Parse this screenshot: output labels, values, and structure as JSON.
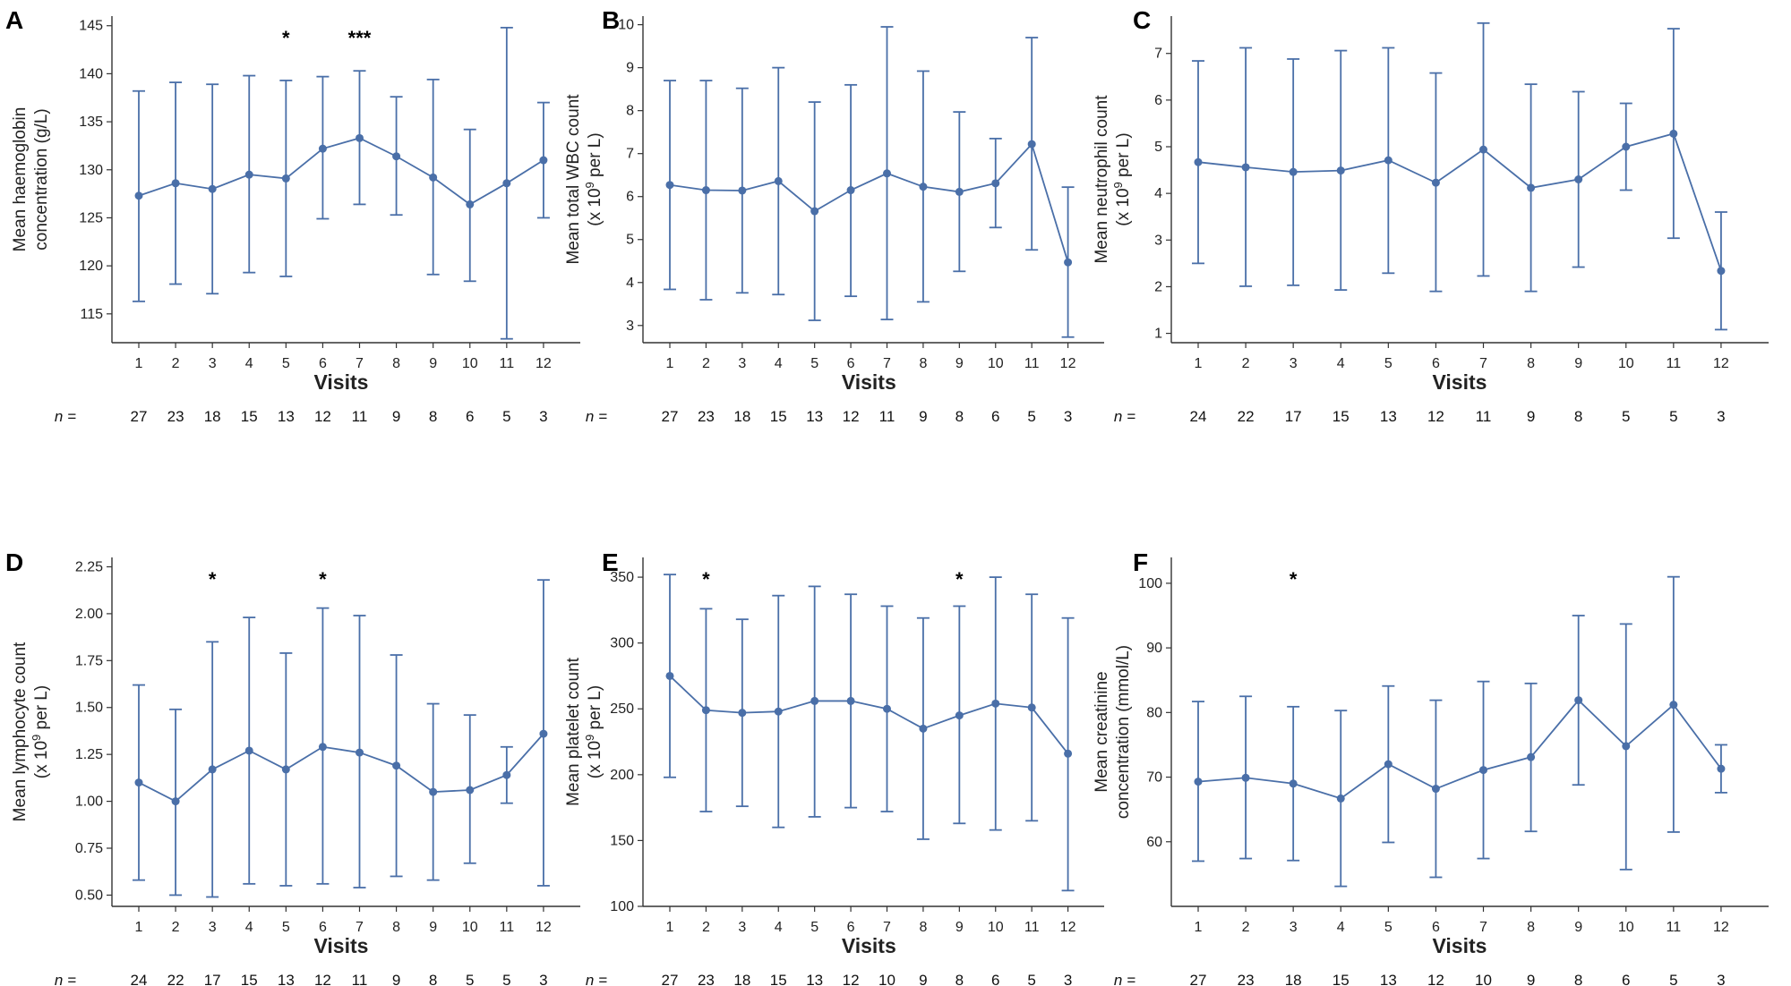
{
  "figure": {
    "x_label": "Visits",
    "n_label": "n =",
    "colors": {
      "series": "#4a6fa8",
      "axis": "#333333",
      "text": "#222222"
    }
  },
  "chart_data": [
    {
      "panel": "A",
      "type": "line",
      "ylabel_lines": [
        "Mean haemoglobin",
        "concentration (g/L)"
      ],
      "ylim": [
        112,
        146
      ],
      "yticks": [
        115,
        120,
        125,
        130,
        135,
        140,
        145
      ],
      "x": [
        1,
        2,
        3,
        4,
        5,
        6,
        7,
        8,
        9,
        10,
        11,
        12
      ],
      "means": [
        127.3,
        128.6,
        128.0,
        129.5,
        129.1,
        132.2,
        133.3,
        131.4,
        129.2,
        126.4,
        128.6,
        131.0
      ],
      "upper": [
        138.2,
        139.1,
        138.9,
        139.8,
        139.3,
        139.7,
        140.3,
        137.6,
        139.4,
        134.2,
        144.8,
        137.0
      ],
      "lower": [
        116.3,
        118.1,
        117.1,
        119.3,
        118.9,
        124.9,
        126.4,
        125.3,
        119.1,
        118.4,
        112.4,
        125.0
      ],
      "n": [
        "27",
        "23",
        "18",
        "15",
        "13",
        "12",
        "11",
        "9",
        "8",
        "6",
        "5",
        "3"
      ],
      "annotations": [
        {
          "x": 5,
          "text": "*"
        },
        {
          "x": 7,
          "text": "***"
        }
      ]
    },
    {
      "panel": "B",
      "type": "line",
      "ylabel_lines": [
        "Mean total WBC count",
        "(x 10^9 per L)"
      ],
      "ylim": [
        2.6,
        10.2
      ],
      "yticks": [
        3,
        4,
        5,
        6,
        7,
        8,
        9,
        10
      ],
      "x": [
        1,
        2,
        3,
        4,
        5,
        6,
        7,
        8,
        9,
        10,
        11,
        12
      ],
      "means": [
        6.27,
        6.15,
        6.14,
        6.36,
        5.66,
        6.15,
        6.54,
        6.23,
        6.11,
        6.31,
        7.22,
        4.47
      ],
      "upper": [
        8.7,
        8.7,
        8.52,
        9.0,
        8.2,
        8.6,
        9.95,
        8.92,
        7.97,
        7.35,
        9.7,
        6.22
      ],
      "lower": [
        3.84,
        3.6,
        3.76,
        3.72,
        3.12,
        3.68,
        3.14,
        3.55,
        4.26,
        5.28,
        4.76,
        2.73
      ],
      "n": [
        "27",
        "23",
        "18",
        "15",
        "13",
        "12",
        "11",
        "9",
        "8",
        "6",
        "5",
        "3"
      ],
      "annotations": []
    },
    {
      "panel": "C",
      "type": "line",
      "ylabel_lines": [
        "Mean neutrophil count",
        "(x 10^9 per L)"
      ],
      "ylim": [
        0.8,
        7.8
      ],
      "yticks": [
        1,
        2,
        3,
        4,
        5,
        6,
        7
      ],
      "x": [
        1,
        2,
        3,
        4,
        5,
        6,
        7,
        8,
        9,
        10,
        11,
        12
      ],
      "means": [
        4.67,
        4.56,
        4.46,
        4.49,
        4.71,
        4.23,
        4.94,
        4.12,
        4.3,
        5.0,
        5.28,
        2.34
      ],
      "upper": [
        6.84,
        7.12,
        6.88,
        7.06,
        7.12,
        6.58,
        7.65,
        6.34,
        6.18,
        5.93,
        7.53,
        3.6
      ],
      "lower": [
        2.5,
        2.01,
        2.03,
        1.93,
        2.29,
        1.9,
        2.23,
        1.9,
        2.42,
        4.07,
        3.04,
        1.08
      ],
      "n": [
        "24",
        "22",
        "17",
        "15",
        "13",
        "12",
        "11",
        "9",
        "8",
        "5",
        "5",
        "3"
      ],
      "annotations": []
    },
    {
      "panel": "D",
      "type": "line",
      "ylabel_lines": [
        "Mean lymphocyte count",
        "(x 10^9 per L)"
      ],
      "ylim": [
        0.44,
        2.3
      ],
      "yticks": [
        0.5,
        0.75,
        1.0,
        1.25,
        1.5,
        1.75,
        2.0,
        2.25
      ],
      "ytick_labels": [
        "0.50",
        "0.75",
        "1.00",
        "1.25",
        "1.50",
        "1.75",
        "2.00",
        "2.25"
      ],
      "x": [
        1,
        2,
        3,
        4,
        5,
        6,
        7,
        8,
        9,
        10,
        11,
        12
      ],
      "means": [
        1.1,
        1.0,
        1.17,
        1.27,
        1.17,
        1.29,
        1.26,
        1.19,
        1.05,
        1.06,
        1.14,
        1.36
      ],
      "upper": [
        1.62,
        1.49,
        1.85,
        1.98,
        1.79,
        2.03,
        1.99,
        1.78,
        1.52,
        1.46,
        1.29,
        2.18
      ],
      "lower": [
        0.58,
        0.5,
        0.49,
        0.56,
        0.55,
        0.56,
        0.54,
        0.6,
        0.58,
        0.67,
        0.99,
        0.55
      ],
      "n": [
        "24",
        "22",
        "17",
        "15",
        "13",
        "12",
        "11",
        "9",
        "8",
        "5",
        "5",
        "3"
      ],
      "annotations": [
        {
          "x": 3,
          "text": "*"
        },
        {
          "x": 6,
          "text": "*"
        }
      ]
    },
    {
      "panel": "E",
      "type": "line",
      "ylabel_lines": [
        "Mean platelet count",
        "(x 10^9 per L)"
      ],
      "ylim": [
        100,
        365
      ],
      "yticks": [
        100,
        150,
        200,
        250,
        300,
        350
      ],
      "x": [
        1,
        2,
        3,
        4,
        5,
        6,
        7,
        8,
        9,
        10,
        11,
        12
      ],
      "means": [
        275,
        249,
        247,
        248,
        256,
        256,
        250,
        235,
        245,
        254,
        251,
        216
      ],
      "upper": [
        352,
        326,
        318,
        336,
        343,
        337,
        328,
        319,
        328,
        350,
        337,
        319
      ],
      "lower": [
        198,
        172,
        176,
        160,
        168,
        175,
        172,
        151,
        163,
        158,
        165,
        112
      ],
      "n": [
        "27",
        "23",
        "18",
        "15",
        "13",
        "12",
        "10",
        "9",
        "8",
        "6",
        "5",
        "3"
      ],
      "annotations": [
        {
          "x": 2,
          "text": "*"
        },
        {
          "x": 9,
          "text": "*"
        }
      ]
    },
    {
      "panel": "F",
      "type": "line",
      "ylabel_lines": [
        "Mean creatinine",
        "concentration (mmol/L)"
      ],
      "ylim": [
        50,
        104
      ],
      "yticks": [
        60,
        70,
        80,
        90,
        100
      ],
      "x": [
        1,
        2,
        3,
        4,
        5,
        6,
        7,
        8,
        9,
        10,
        11,
        12
      ],
      "means": [
        69.3,
        69.9,
        69.0,
        66.7,
        72.0,
        68.2,
        71.1,
        73.1,
        81.9,
        74.8,
        81.2,
        71.3
      ],
      "upper": [
        81.7,
        82.5,
        80.9,
        80.3,
        84.1,
        81.9,
        84.8,
        84.5,
        95.0,
        93.7,
        101.0,
        75.0
      ],
      "lower": [
        57.0,
        57.4,
        57.1,
        53.1,
        59.9,
        54.5,
        57.4,
        61.6,
        68.8,
        55.7,
        61.5,
        67.6
      ],
      "n": [
        "27",
        "23",
        "18",
        "15",
        "13",
        "12",
        "10",
        "9",
        "8",
        "6",
        "5",
        "3"
      ],
      "annotations": [
        {
          "x": 3,
          "text": "*"
        }
      ]
    }
  ]
}
